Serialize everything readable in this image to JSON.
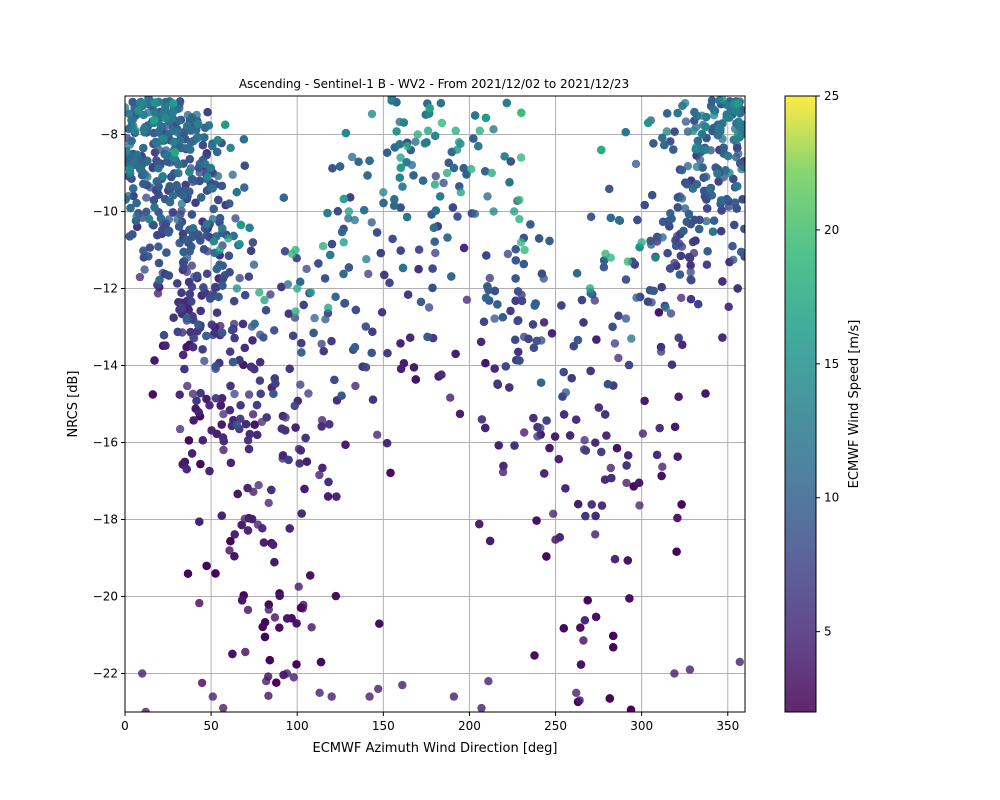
{
  "chart_data": {
    "type": "scatter",
    "title": "Ascending - Sentinel-1 B - WV2 - From 2021/12/02 to 2021/12/23",
    "xlabel": "ECMWF Azimuth Wind Direction [deg]",
    "ylabel": "NRCS [dB]",
    "xlim": [
      0,
      360
    ],
    "ylim": [
      -23,
      -7
    ],
    "xticks": [
      0,
      50,
      100,
      150,
      200,
      250,
      300,
      350
    ],
    "yticks": [
      -22,
      -20,
      -18,
      -16,
      -14,
      -12,
      -10,
      -8
    ],
    "grid": true,
    "marker_alpha": 0.8,
    "colormap": "viridis",
    "colorbar": {
      "label": "ECMWF Wind Speed [m/s]",
      "range": [
        2,
        25
      ],
      "ticks": [
        5,
        10,
        15,
        20,
        25
      ]
    },
    "notes": "Dense point cloud (~several thousand points). Representative sample of estimated points listed below; remaining density rendered from the same distribution.",
    "series": [
      {
        "points": [
          {
            "x": 0,
            "y": -7.3,
            "c": 13
          },
          {
            "x": 6,
            "y": -7.9,
            "c": 14
          },
          {
            "x": 28,
            "y": -8.2,
            "c": 14
          },
          {
            "x": 5,
            "y": -8.7,
            "c": 12
          },
          {
            "x": 13,
            "y": -9.1,
            "c": 12
          },
          {
            "x": 48,
            "y": -9.1,
            "c": 15
          },
          {
            "x": 33,
            "y": -9.8,
            "c": 12
          },
          {
            "x": 2,
            "y": -9.6,
            "c": 11
          },
          {
            "x": 51,
            "y": -10.2,
            "c": 11
          },
          {
            "x": 60,
            "y": -10.7,
            "c": 17
          },
          {
            "x": 55,
            "y": -11,
            "c": 16
          },
          {
            "x": 97,
            "y": -11.1,
            "c": 19
          },
          {
            "x": 99,
            "y": -11,
            "c": 19
          },
          {
            "x": 115,
            "y": -10.9,
            "c": 18
          },
          {
            "x": 100,
            "y": -12,
            "c": 18
          },
          {
            "x": 108,
            "y": -12.1,
            "c": 17
          },
          {
            "x": 118,
            "y": -12.5,
            "c": 17
          },
          {
            "x": 78,
            "y": -12.1,
            "c": 18
          },
          {
            "x": 81,
            "y": -12.3,
            "c": 17
          },
          {
            "x": 65,
            "y": -12.0,
            "c": 15
          },
          {
            "x": 99,
            "y": -12.6,
            "c": 18
          },
          {
            "x": 130,
            "y": -10.0,
            "c": 17
          },
          {
            "x": 127,
            "y": -10.8,
            "c": 16
          },
          {
            "x": 150,
            "y": -9.5,
            "c": 14
          },
          {
            "x": 160,
            "y": -8.6,
            "c": 17
          },
          {
            "x": 164,
            "y": -8.3,
            "c": 18
          },
          {
            "x": 170,
            "y": -8.0,
            "c": 18
          },
          {
            "x": 176,
            "y": -7.9,
            "c": 17
          },
          {
            "x": 184,
            "y": -7.7,
            "c": 19
          },
          {
            "x": 192,
            "y": -7.9,
            "c": 18
          },
          {
            "x": 194,
            "y": -8.2,
            "c": 16
          },
          {
            "x": 206,
            "y": -7.9,
            "c": 18
          },
          {
            "x": 201,
            "y": -8.9,
            "c": 18
          },
          {
            "x": 230,
            "y": -8.6,
            "c": 19
          },
          {
            "x": 213,
            "y": -9.0,
            "c": 18
          },
          {
            "x": 229,
            "y": -9.7,
            "c": 19
          },
          {
            "x": 229,
            "y": -10.2,
            "c": 18
          },
          {
            "x": 230,
            "y": -10.8,
            "c": 19
          },
          {
            "x": 232,
            "y": -11.0,
            "c": 19
          },
          {
            "x": 226,
            "y": -10.0,
            "c": 17
          },
          {
            "x": 214,
            "y": -10.0,
            "c": 14
          },
          {
            "x": 187,
            "y": -9.0,
            "c": 18
          },
          {
            "x": 180,
            "y": -9.3,
            "c": 17
          },
          {
            "x": 195,
            "y": -9.5,
            "c": 17
          },
          {
            "x": 270,
            "y": -12.0,
            "c": 17
          },
          {
            "x": 279,
            "y": -11.1,
            "c": 19
          },
          {
            "x": 282,
            "y": -11.2,
            "c": 19
          },
          {
            "x": 292,
            "y": -11.3,
            "c": 19
          },
          {
            "x": 300,
            "y": -10.8,
            "c": 18
          },
          {
            "x": 308,
            "y": -11.2,
            "c": 15
          },
          {
            "x": 330,
            "y": -7.9,
            "c": 14
          },
          {
            "x": 342,
            "y": -7.5,
            "c": 14
          },
          {
            "x": 356,
            "y": -7.2,
            "c": 17
          },
          {
            "x": 356,
            "y": -8.0,
            "c": 14
          },
          {
            "x": 351,
            "y": -9.0,
            "c": 13
          },
          {
            "x": 358,
            "y": -8.9,
            "c": 12
          },
          {
            "x": 340,
            "y": -9.4,
            "c": 13
          },
          {
            "x": 314,
            "y": -12.5,
            "c": 12
          },
          {
            "x": 294,
            "y": -13.3,
            "c": 12
          },
          {
            "x": 256,
            "y": -14.7,
            "c": 9
          },
          {
            "x": 12,
            "y": -23.0,
            "c": 4
          },
          {
            "x": 10,
            "y": -22.0,
            "c": 4
          },
          {
            "x": 51,
            "y": -22.6,
            "c": 4
          },
          {
            "x": 57,
            "y": -22.9,
            "c": 4
          },
          {
            "x": 82,
            "y": -22.2,
            "c": 4
          },
          {
            "x": 94,
            "y": -22.0,
            "c": 4
          },
          {
            "x": 98,
            "y": -22.1,
            "c": 4
          },
          {
            "x": 113,
            "y": -22.5,
            "c": 4
          },
          {
            "x": 120,
            "y": -22.6,
            "c": 4
          },
          {
            "x": 142,
            "y": -22.6,
            "c": 4
          },
          {
            "x": 147,
            "y": -22.4,
            "c": 4
          },
          {
            "x": 161,
            "y": -22.3,
            "c": 4
          },
          {
            "x": 191,
            "y": -22.6,
            "c": 4
          },
          {
            "x": 207,
            "y": -22.9,
            "c": 4
          },
          {
            "x": 211,
            "y": -22.2,
            "c": 4
          },
          {
            "x": 262,
            "y": -22.5,
            "c": 4
          },
          {
            "x": 264,
            "y": -22.7,
            "c": 4
          },
          {
            "x": 319,
            "y": -22.0,
            "c": 4
          },
          {
            "x": 328,
            "y": -21.9,
            "c": 4
          },
          {
            "x": 357,
            "y": -21.7,
            "c": 4
          }
        ]
      }
    ]
  }
}
